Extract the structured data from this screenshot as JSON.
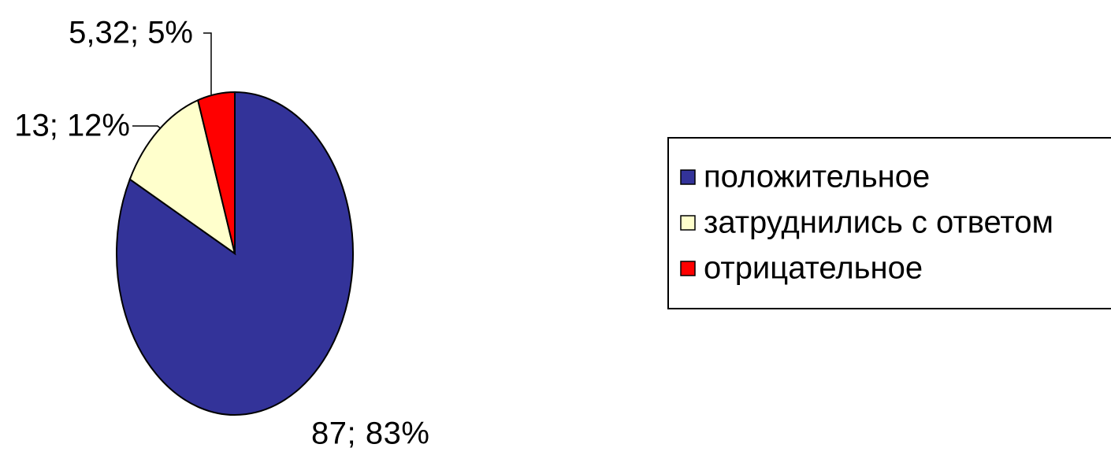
{
  "chart_data": {
    "type": "pie",
    "categories": [
      "положительное",
      "затруднились с ответом",
      "отрицательное"
    ],
    "values": [
      87,
      13,
      5.32
    ],
    "value_labels": [
      "87; 83%",
      "13; 12%",
      "5,32; 5%"
    ],
    "colors": [
      "#333399",
      "#ffffcc",
      "#ff0000"
    ],
    "legend": "right"
  }
}
